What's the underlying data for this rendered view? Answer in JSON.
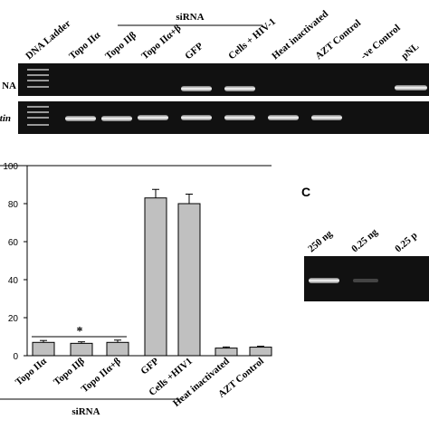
{
  "panel_a": {
    "lane_labels": [
      "DNA Ladder",
      "Topo IIα",
      "Topo IIβ",
      "Topo IIα+β",
      "GFP",
      "Cells + HIV-1",
      "Heat inactivated",
      "AZT Control",
      "-ve Control",
      "pNL"
    ],
    "group_label": "siRNA",
    "row_labels": [
      "NA",
      "actin"
    ]
  },
  "chart_data": {
    "type": "bar",
    "categories": [
      "Topo IIα",
      "Topo IIβ",
      "Topo IIα+β",
      "GFP",
      "Cells +HIV1",
      "Heat inactivated",
      "AZT Control"
    ],
    "values": [
      7,
      6.5,
      7,
      83,
      80,
      4,
      4.5
    ],
    "errors": [
      1,
      0.8,
      1.2,
      4.5,
      5,
      0.6,
      0.5
    ],
    "color": "#c0c0c0",
    "ylim": [
      0,
      100
    ],
    "yticks": [
      0,
      20,
      40,
      60,
      80,
      100
    ],
    "annotation": "*",
    "group_label": "siRNA"
  },
  "panel_c": {
    "label": "C",
    "lane_labels": [
      "250 ng",
      "0.25 ng",
      "0.25 p"
    ]
  }
}
